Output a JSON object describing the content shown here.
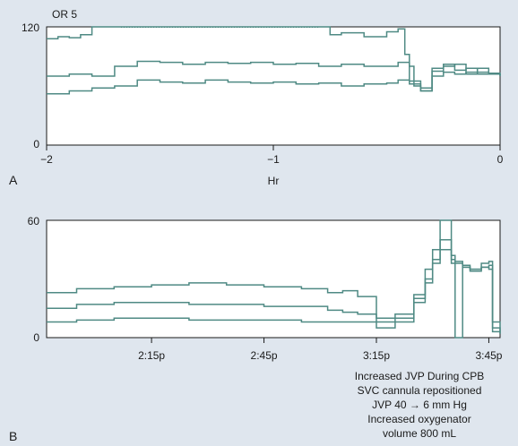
{
  "chart_data": [
    {
      "panel_label": "A",
      "type": "line",
      "annotation": "OR 5",
      "xlabel": "Hr",
      "xlim": [
        -2,
        0
      ],
      "ylim": [
        0,
        120
      ],
      "x_ticks": [
        "−2",
        "−1",
        "0"
      ],
      "y_ticks": [
        "0",
        "120"
      ],
      "series": [
        {
          "x": [
            -2.0,
            -1.95,
            -1.9,
            -1.85,
            -1.8,
            -1.79,
            -1.7,
            -1.6,
            -1.5,
            -1.4,
            -1.3,
            -1.2,
            -1.1,
            -1.0,
            -0.9,
            -0.8,
            -0.75,
            -0.7,
            -0.6,
            -0.5,
            -0.45,
            -0.42,
            -0.4,
            -0.38,
            -0.35,
            -0.3,
            -0.25,
            -0.2,
            -0.15,
            -0.1,
            -0.05,
            0.0
          ],
          "y": [
            108,
            110,
            109,
            112,
            120,
            120,
            120,
            120,
            120,
            120,
            120,
            120,
            120,
            120,
            120,
            120,
            112,
            114,
            110,
            115,
            118,
            92,
            80,
            60,
            55,
            75,
            80,
            82,
            72,
            78,
            73,
            71
          ]
        },
        {
          "x": [
            -2.0,
            -1.9,
            -1.8,
            -1.7,
            -1.6,
            -1.5,
            -1.4,
            -1.3,
            -1.2,
            -1.1,
            -1.0,
            -0.9,
            -0.8,
            -0.7,
            -0.6,
            -0.5,
            -0.45,
            -0.4,
            -0.35,
            -0.3,
            -0.25,
            -0.2,
            -0.15,
            -0.1,
            -0.05,
            0.0
          ],
          "y": [
            70,
            72,
            70,
            80,
            85,
            84,
            82,
            84,
            83,
            84,
            82,
            83,
            80,
            82,
            80,
            80,
            84,
            65,
            58,
            78,
            82,
            76,
            78,
            74,
            72,
            70
          ]
        },
        {
          "x": [
            -2.0,
            -1.9,
            -1.8,
            -1.7,
            -1.6,
            -1.5,
            -1.4,
            -1.3,
            -1.2,
            -1.1,
            -1.0,
            -0.9,
            -0.8,
            -0.7,
            -0.6,
            -0.5,
            -0.45,
            -0.4,
            -0.35,
            -0.3,
            -0.25,
            -0.2,
            -0.15,
            -0.1,
            -0.05,
            0.0
          ],
          "y": [
            52,
            55,
            58,
            60,
            66,
            64,
            63,
            66,
            64,
            63,
            64,
            62,
            63,
            60,
            62,
            63,
            66,
            62,
            55,
            70,
            74,
            72,
            74,
            72,
            72,
            70
          ]
        }
      ]
    },
    {
      "panel_label": "B",
      "type": "line",
      "ylim": [
        0,
        60
      ],
      "y_ticks": [
        "0",
        "60"
      ],
      "x_ticks": [
        "2:15p",
        "2:45p",
        "3:15p",
        "3:45p"
      ],
      "x_tick_minutes": [
        15,
        45,
        75,
        105
      ],
      "xlim_minutes": [
        -13,
        108
      ],
      "annotation": [
        "Increased JVP During CPB",
        "SVC cannula repositioned",
        "JVP 40 → 6 mm Hg",
        "Increased oxygenator",
        "volume 800 mL"
      ],
      "series": [
        {
          "x": [
            -13,
            -5,
            5,
            15,
            25,
            35,
            45,
            55,
            62,
            66,
            70,
            75,
            80,
            85,
            88,
            90,
            92,
            95,
            96,
            98,
            100,
            103,
            105,
            106,
            108
          ],
          "y": [
            23,
            25,
            26,
            27,
            28,
            27,
            26,
            25,
            23,
            24,
            21,
            10,
            12,
            22,
            35,
            45,
            60,
            40,
            38,
            37,
            35,
            38,
            39,
            3,
            2
          ]
        },
        {
          "x": [
            -13,
            -5,
            5,
            15,
            25,
            35,
            45,
            55,
            62,
            66,
            70,
            75,
            80,
            85,
            88,
            90,
            92,
            95,
            96,
            98,
            100,
            103,
            105,
            106,
            108
          ],
          "y": [
            15,
            17,
            18,
            18,
            17,
            17,
            16,
            16,
            14,
            13,
            12,
            8,
            10,
            20,
            30,
            40,
            50,
            42,
            39,
            36,
            35,
            36,
            37,
            5,
            2
          ]
        },
        {
          "x": [
            -13,
            -5,
            5,
            15,
            25,
            35,
            45,
            55,
            62,
            66,
            70,
            75,
            80,
            85,
            88,
            90,
            92,
            95,
            96,
            98,
            100,
            103,
            105,
            106,
            108
          ],
          "y": [
            8,
            9,
            10,
            10,
            9,
            9,
            9,
            8,
            8,
            8,
            8,
            5,
            8,
            18,
            28,
            38,
            45,
            38,
            0,
            36,
            34,
            36,
            35,
            8,
            3
          ]
        }
      ]
    }
  ]
}
